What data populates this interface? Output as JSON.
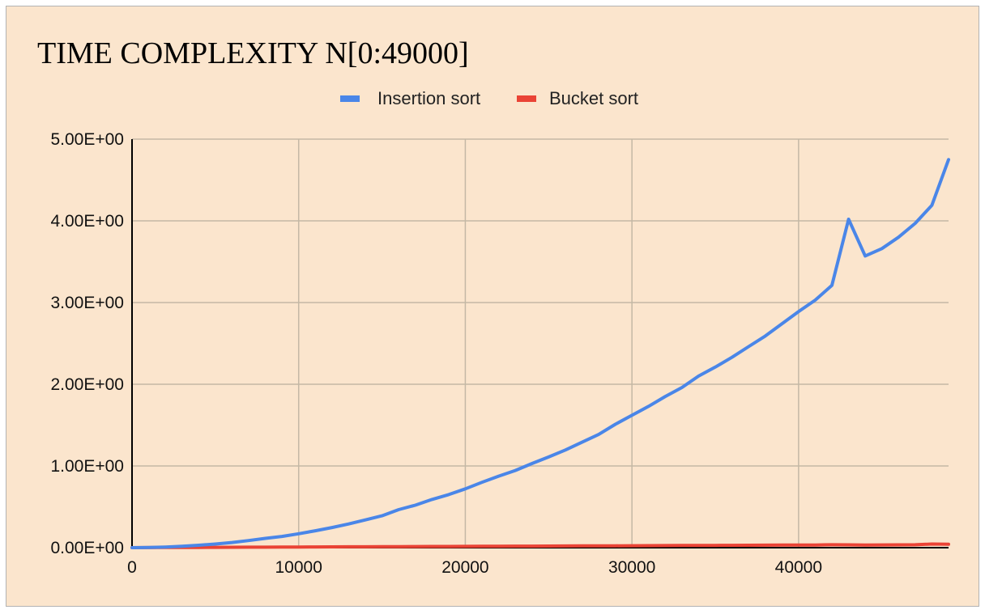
{
  "chart_data": {
    "type": "line",
    "title": "TIME COMPLEXITY N[0:49000]",
    "xlabel": "",
    "ylabel": "",
    "xlim": [
      0,
      49000
    ],
    "ylim": [
      0,
      5
    ],
    "x_ticks": [
      0,
      10000,
      20000,
      30000,
      40000
    ],
    "x_tick_labels": [
      "0",
      "10000",
      "20000",
      "30000",
      "40000"
    ],
    "y_ticks": [
      0,
      1,
      2,
      3,
      4,
      5
    ],
    "y_tick_labels": [
      "0.00E+00",
      "1.00E+00",
      "2.00E+00",
      "3.00E+00",
      "4.00E+00",
      "5.00E+00"
    ],
    "grid": true,
    "legend_position": "top-center",
    "x": [
      0,
      1000,
      2000,
      3000,
      4000,
      5000,
      6000,
      7000,
      8000,
      9000,
      10000,
      11000,
      12000,
      13000,
      14000,
      15000,
      16000,
      17000,
      18000,
      19000,
      20000,
      21000,
      22000,
      23000,
      24000,
      25000,
      26000,
      27000,
      28000,
      29000,
      30000,
      31000,
      32000,
      33000,
      34000,
      35000,
      36000,
      37000,
      38000,
      39000,
      40000,
      41000,
      42000,
      43000,
      44000,
      45000,
      46000,
      47000,
      48000,
      49000
    ],
    "series": [
      {
        "name": "Insertion sort",
        "color": "#4a86e8",
        "values": [
          0,
          0.002,
          0.008,
          0.018,
          0.03,
          0.045,
          0.063,
          0.087,
          0.114,
          0.138,
          0.17,
          0.207,
          0.247,
          0.29,
          0.34,
          0.39,
          0.465,
          0.52,
          0.59,
          0.65,
          0.72,
          0.8,
          0.875,
          0.945,
          1.03,
          1.11,
          1.195,
          1.29,
          1.385,
          1.51,
          1.62,
          1.73,
          1.85,
          1.96,
          2.1,
          2.21,
          2.33,
          2.46,
          2.59,
          2.74,
          2.89,
          3.03,
          3.21,
          4.02,
          3.57,
          3.66,
          3.8,
          3.97,
          4.19,
          4.75
        ]
      },
      {
        "name": "Bucket sort",
        "color": "#ea4335",
        "values": [
          0,
          0.0008,
          0.0016,
          0.0024,
          0.0032,
          0.004,
          0.0048,
          0.0056,
          0.0064,
          0.0072,
          0.008,
          0.0088,
          0.0096,
          0.0104,
          0.0112,
          0.012,
          0.0128,
          0.0136,
          0.0144,
          0.0152,
          0.016,
          0.0168,
          0.0176,
          0.0184,
          0.0192,
          0.02,
          0.0208,
          0.0216,
          0.0224,
          0.0232,
          0.024,
          0.0248,
          0.0256,
          0.0264,
          0.0272,
          0.028,
          0.0288,
          0.0296,
          0.0304,
          0.0312,
          0.032,
          0.033,
          0.036,
          0.035,
          0.033,
          0.034,
          0.035,
          0.036,
          0.045,
          0.042
        ]
      }
    ]
  },
  "colors": {
    "background": "#fbe5cd",
    "grid": "#c4b8a5",
    "axis": "#000000",
    "border": "#b3b3b3"
  }
}
